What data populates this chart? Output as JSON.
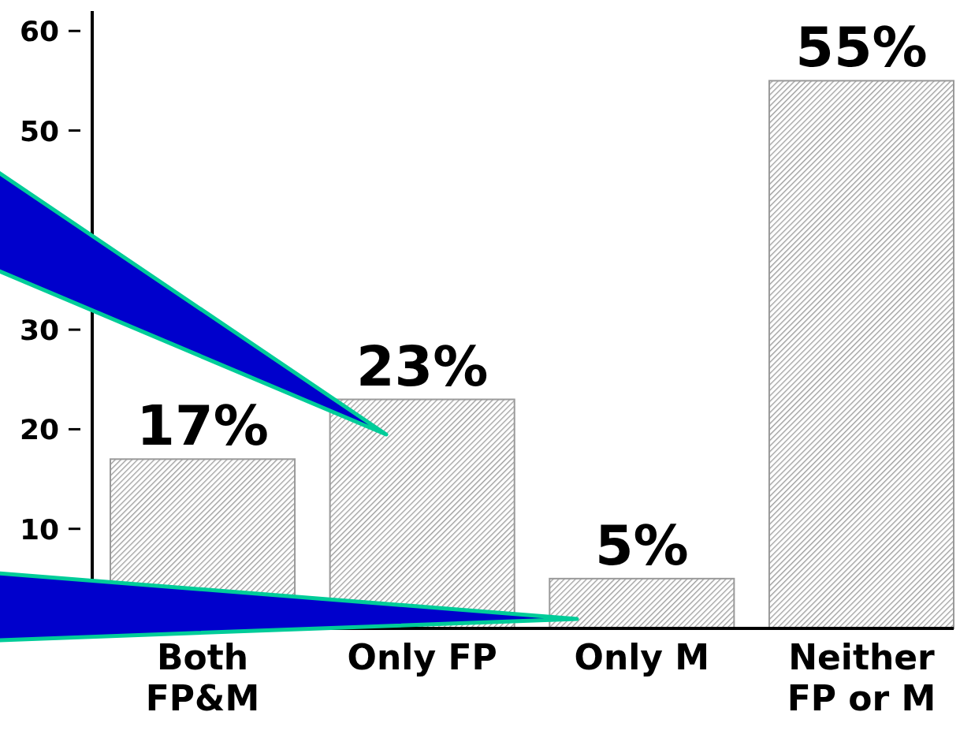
{
  "chart_data": {
    "type": "bar",
    "categories": [
      "Both\nFP&M",
      "Only FP",
      "Only M",
      "Neither\nFP or M"
    ],
    "values": [
      17,
      23,
      5,
      55
    ],
    "value_labels": [
      "17%",
      "23%",
      "5%",
      "55%"
    ],
    "color": "#9a9a9a",
    "ylim": [
      0,
      62
    ],
    "yticks": [
      10,
      20,
      30,
      50,
      60
    ]
  }
}
